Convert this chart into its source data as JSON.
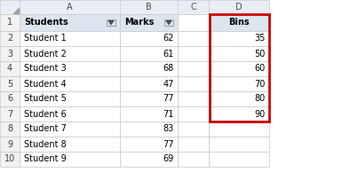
{
  "col_a_header": "Students",
  "col_b_header": "Marks",
  "col_d_header": "Bins",
  "students": [
    "Student 1",
    "Student 2",
    "Student 3",
    "Student 4",
    "Student 5",
    "Student 6",
    "Student 7",
    "Student 8",
    "Student 9"
  ],
  "marks": [
    62,
    61,
    68,
    47,
    77,
    71,
    83,
    77,
    69
  ],
  "bins": [
    35,
    50,
    60,
    70,
    80,
    90
  ],
  "header_bg": "#dce6f1",
  "header_text": "#000000",
  "cell_bg": "#ffffff",
  "row_num_bg": "#f2f2f2",
  "col_hdr_bg": "#dce6f1",
  "col_letter_bg": "#e8eef5",
  "red_border": "#cc0000",
  "grid_color": "#c0c0c0",
  "font_size": 7.0,
  "header_font_size": 7.0
}
